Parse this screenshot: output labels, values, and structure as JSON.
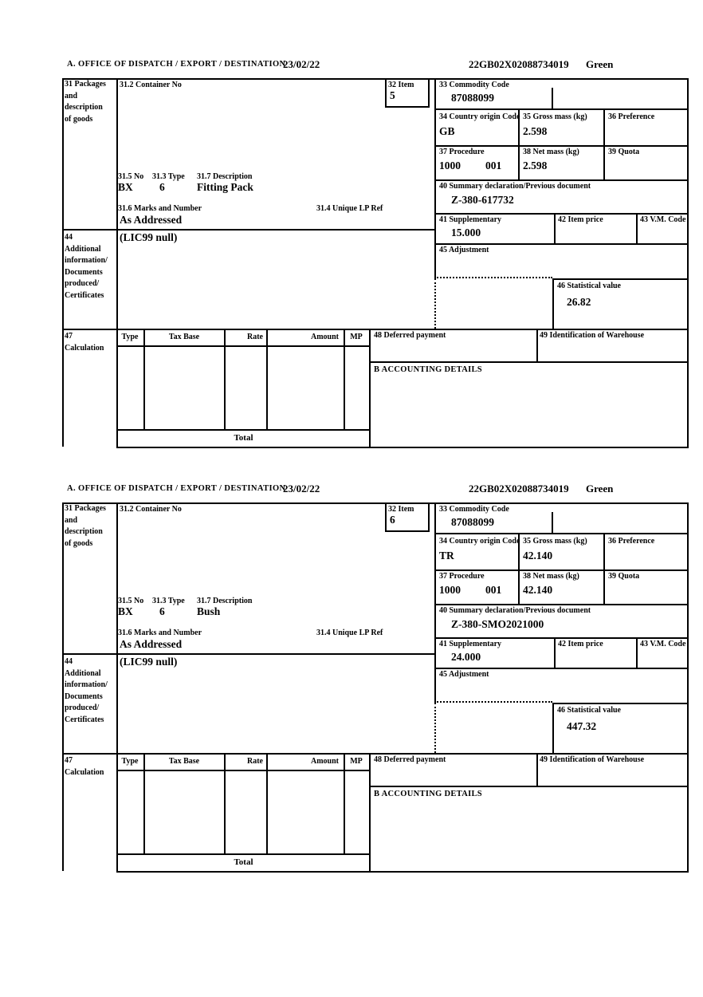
{
  "labels": {
    "office": "A.  OFFICE OF DISPATCH / EXPORT / DESTINATION",
    "b31_1": "31 Packages",
    "b31_2": "and",
    "b31_3": "description",
    "b31_4": "of goods",
    "container": "31.2 Container No",
    "b32": "32 Item",
    "b33": "33 Commodity Code",
    "b34": "34 Country origin Code",
    "b35": "35 Gross mass (kg)",
    "b36": "36 Preference",
    "b37": "37 Procedure",
    "b38": "38 Net mass (kg)",
    "b39": "39 Quota",
    "b40": "40 Summary declaration/Previous document",
    "b41": "41 Supplementary",
    "b42": "42 Item price",
    "b43": "43 V.M. Code",
    "b44_1": "44",
    "b44_2": "Additional",
    "b44_3": "information/",
    "b44_4": "Documents",
    "b44_5": "produced/",
    "b44_6": "Certificates",
    "b45": "45 Adjustment",
    "b46": "46 Statistical value",
    "b47_1": "47",
    "b47_2": "Calculation",
    "b48": "48 Deferred payment",
    "b49": "49 Identification of Warehouse",
    "b31_5no": "31.5 No",
    "b31_3type": "31.3 Type",
    "b31_7desc": "31.7 Description",
    "b31_6marks": "31.6 Marks and Number",
    "b31_4lp": "31.4 Unique LP Ref",
    "col_type": "Type",
    "col_taxbase": "Tax Base",
    "col_rate": "Rate",
    "col_amount": "Amount",
    "col_mp": "MP",
    "accounting": "B ACCOUNTING DETAILS",
    "total": "Total"
  },
  "items": [
    {
      "date": "23/02/22",
      "mrn": "22GB02X02088734019",
      "routing": "Green",
      "item_no": "5",
      "commodity_code": "87088099",
      "country_origin": "GB",
      "gross_mass": "2.598",
      "procedure": "1000",
      "procedure_extra": "001",
      "net_mass": "2.598",
      "previous_document": "Z-380-617732",
      "supplementary": "15.000",
      "package_no": "BX",
      "package_type": "6",
      "description": "Fitting Pack",
      "marks": "As Addressed",
      "additional_info": "(LIC99 null)",
      "statistical_value": "26.82"
    },
    {
      "date": "23/02/22",
      "mrn": "22GB02X02088734019",
      "routing": "Green",
      "item_no": "6",
      "commodity_code": "87088099",
      "country_origin": "TR",
      "gross_mass": "42.140",
      "procedure": "1000",
      "procedure_extra": "001",
      "net_mass": "42.140",
      "previous_document": "Z-380-SMO2021000",
      "supplementary": "24.000",
      "package_no": "BX",
      "package_type": "6",
      "description": "Bush",
      "marks": "As Addressed",
      "additional_info": "(LIC99 null)",
      "statistical_value": "447.32"
    }
  ]
}
